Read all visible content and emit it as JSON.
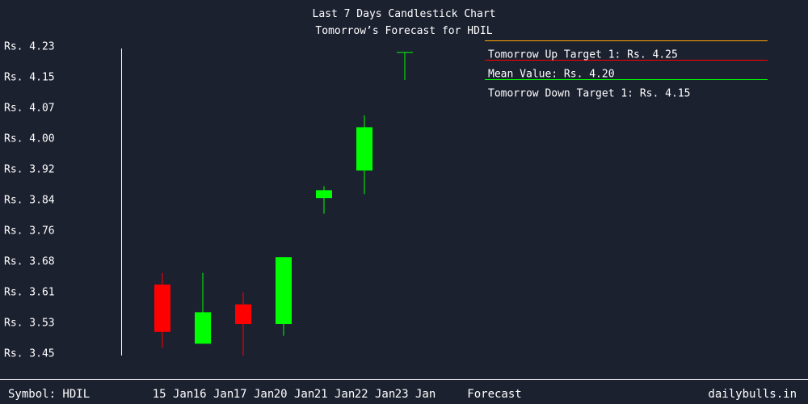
{
  "header": {
    "title": "Last 7 Days Candlestick Chart",
    "subtitle": "Tomorrow’s Forecast for HDIL"
  },
  "footer": {
    "symbol": "Symbol: HDIL",
    "brand": "dailybulls.in"
  },
  "colors": {
    "background": "#1c2130",
    "up": "#00ff00",
    "down": "#ff0000",
    "target_up_line": "#ffa500",
    "mean_line": "#ff0000",
    "target_down_line": "#00ff00",
    "text": "#ffffff"
  },
  "chart_data": {
    "type": "candlestick",
    "title": "Last 7 Days Candlestick Chart",
    "subtitle": "Tomorrow’s Forecast for HDIL",
    "y_tick_labels": [
      "Rs. 4.23",
      "Rs. 4.15",
      "Rs. 4.07",
      "Rs. 4.00",
      "Rs. 3.92",
      "Rs. 3.84",
      "Rs. 3.76",
      "Rs. 3.68",
      "Rs. 3.61",
      "Rs. 3.53",
      "Rs. 3.45"
    ],
    "ylim": [
      3.45,
      4.23
    ],
    "categories": [
      "15 Jan",
      "16 Jan",
      "17 Jan",
      "20 Jan",
      "21 Jan",
      "22 Jan",
      "23 Jan",
      "Forecast"
    ],
    "candles": [
      {
        "date": "15 Jan",
        "open": 3.63,
        "high": 3.66,
        "low": 3.47,
        "close": 3.51
      },
      {
        "date": "16 Jan",
        "open": 3.48,
        "high": 3.66,
        "low": 3.48,
        "close": 3.56
      },
      {
        "date": "17 Jan",
        "open": 3.58,
        "high": 3.61,
        "low": 3.45,
        "close": 3.53
      },
      {
        "date": "20 Jan",
        "open": 3.53,
        "high": 3.7,
        "low": 3.5,
        "close": 3.7
      },
      {
        "date": "21 Jan",
        "open": 3.85,
        "high": 3.88,
        "low": 3.81,
        "close": 3.87
      },
      {
        "date": "22 Jan",
        "open": 3.92,
        "high": 4.06,
        "low": 3.86,
        "close": 4.03
      },
      {
        "date": "23 Jan",
        "open": 4.22,
        "high": 4.22,
        "low": 4.15,
        "close": 4.22
      }
    ],
    "forecast": {
      "up_target_label": "Tomorrow Up Target 1: Rs. 4.25",
      "mean_label": "Mean Value: Rs. 4.20",
      "down_target_label": "Tomorrow Down Target 1: Rs. 4.15",
      "up_target": 4.25,
      "mean": 4.2,
      "down_target": 4.15
    },
    "grid": false
  }
}
